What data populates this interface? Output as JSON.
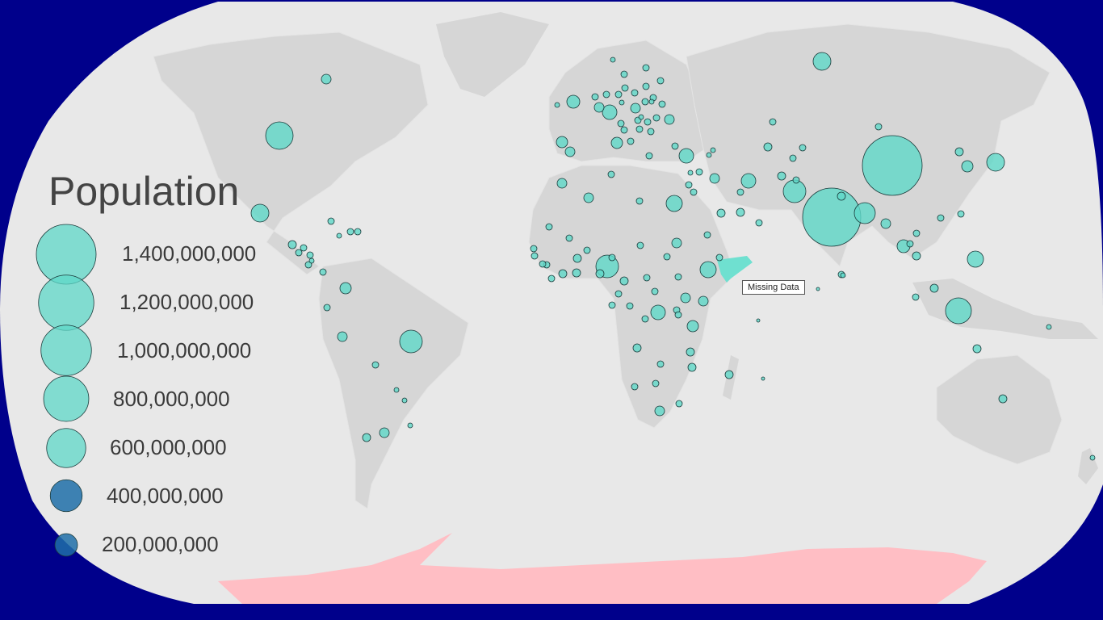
{
  "legend": {
    "title": "Population",
    "entries": [
      {
        "label": "1,400,000,000",
        "value": 1400000000
      },
      {
        "label": "1,200,000,000",
        "value": 1200000000
      },
      {
        "label": "1,000,000,000",
        "value": 1000000000
      },
      {
        "label": "800,000,000",
        "value": 800000000
      },
      {
        "label": "600,000,000",
        "value": 600000000
      },
      {
        "label": "400,000,000",
        "value": 400000000
      },
      {
        "label": "200,000,000",
        "value": 200000000
      }
    ]
  },
  "tooltip": {
    "text": "Missing Data"
  },
  "colors": {
    "background": "#00008b",
    "ocean": "#e8e8e8",
    "land": "#d6d6d6",
    "antarctica": "#ffbec4",
    "bubble": "#5fd8c8",
    "bubble_legend_small": "#1f6fa8",
    "missing_data": "#6fe0d0"
  }
}
